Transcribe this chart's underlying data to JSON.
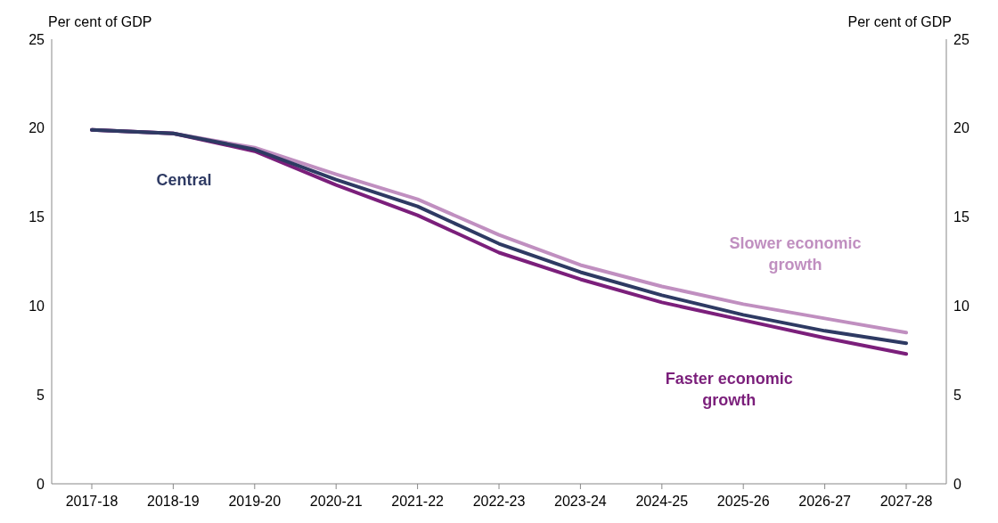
{
  "chart_data": {
    "type": "line",
    "ylabel": "Per cent of GDP",
    "y2label": "Per cent of GDP",
    "categories": [
      "2017-18",
      "2018-19",
      "2019-20",
      "2020-21",
      "2021-22",
      "2022-23",
      "2023-24",
      "2024-25",
      "2025-26",
      "2026-27",
      "2027-28"
    ],
    "series": [
      {
        "name": "Slower economic growth",
        "color": "#c08fc0",
        "values": [
          19.9,
          19.7,
          18.9,
          17.4,
          16.0,
          14.0,
          12.3,
          11.1,
          10.1,
          9.3,
          8.5
        ]
      },
      {
        "name": "Faster economic growth",
        "color": "#7b1f7b",
        "values": [
          19.9,
          19.7,
          18.7,
          16.8,
          15.1,
          13.0,
          11.5,
          10.2,
          9.2,
          8.2,
          7.3
        ]
      },
      {
        "name": "Central",
        "color": "#2e3a63",
        "values": [
          19.9,
          19.7,
          18.8,
          17.1,
          15.6,
          13.5,
          11.9,
          10.6,
          9.5,
          8.6,
          7.9
        ]
      }
    ],
    "ylim": [
      0,
      25
    ],
    "yticks": [
      0,
      5,
      10,
      15,
      20,
      25
    ],
    "y2lim": [
      0,
      25
    ],
    "y2ticks": [
      0,
      5,
      10,
      15,
      20,
      25
    ],
    "grid": false,
    "legend": false,
    "marker": "none",
    "line_style": "solid"
  }
}
